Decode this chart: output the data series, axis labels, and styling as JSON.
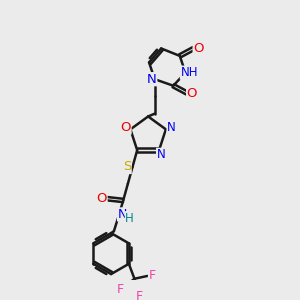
{
  "bg_color": "#ebebeb",
  "atom_colors": {
    "N": "#0000ee",
    "O": "#ee0000",
    "S": "#ccaa00",
    "F": "#ee44aa",
    "H": "#008888",
    "C": "#000000"
  },
  "bond_color": "#1a1a1a",
  "bond_width": 1.8,
  "font_size_atom": 9.5,
  "font_size_small": 8.5
}
